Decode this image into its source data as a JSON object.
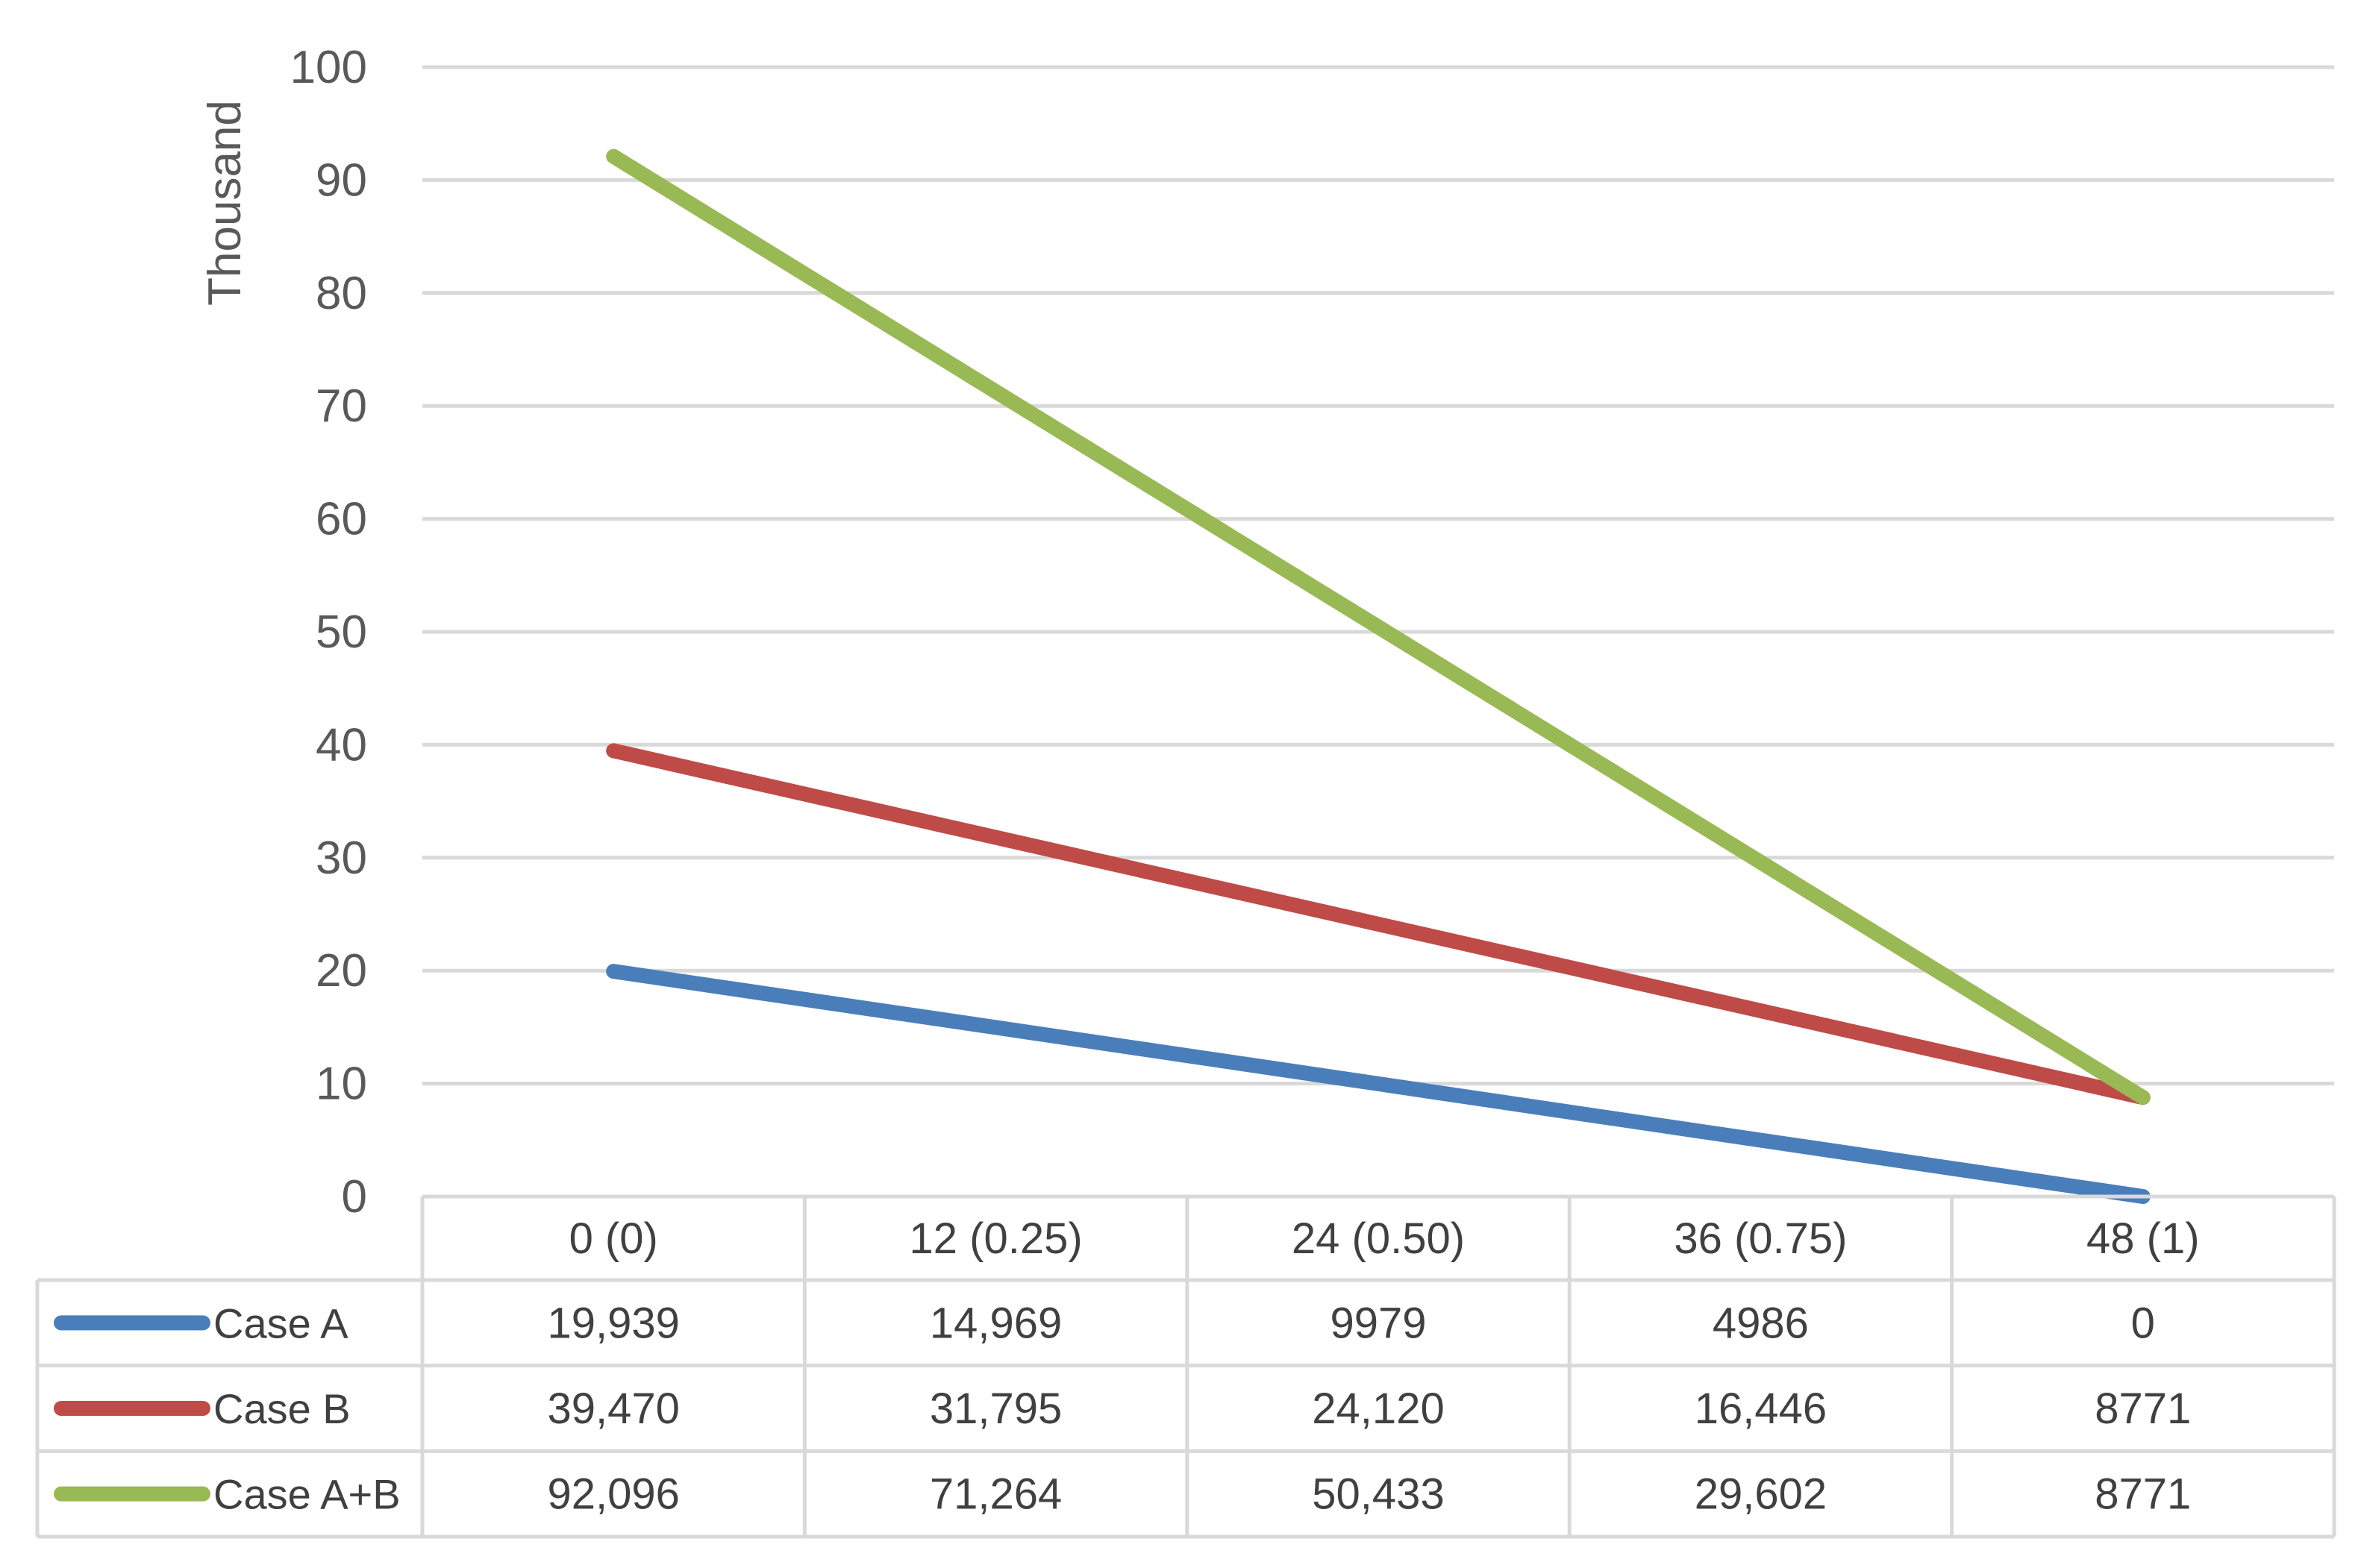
{
  "chart_data": {
    "type": "line",
    "ylabel": "Thousand",
    "ylim": [
      0,
      100
    ],
    "yticks": [
      0,
      10,
      20,
      30,
      40,
      50,
      60,
      70,
      80,
      90,
      100
    ],
    "y_tick_labels": [
      "0",
      "10",
      "20",
      "30",
      "40",
      "50",
      "60",
      "70",
      "80",
      "90",
      "100"
    ],
    "grid": true,
    "legend": "data-table",
    "categories": [
      "0 (0)",
      "12 (0.25)",
      "24 (0.50)",
      "36 (0.75)",
      "48 (1)"
    ],
    "series": [
      {
        "name": "Case A",
        "color": "#4a7ebb",
        "values": [
          19.939,
          14.969,
          9.979,
          4.986,
          0
        ],
        "labels": [
          "19,939",
          "14,969",
          "9979",
          "4986",
          "0"
        ]
      },
      {
        "name": "Case B",
        "color": "#be4b48",
        "values": [
          39.47,
          31.795,
          24.12,
          16.446,
          8.771
        ],
        "labels": [
          "39,470",
          "31,795",
          "24,120",
          "16,446",
          "8771"
        ]
      },
      {
        "name": "Case A+B",
        "color": "#98b954",
        "values": [
          92.096,
          71.264,
          50.433,
          29.602,
          8.771
        ],
        "labels": [
          "92,096",
          "71,264",
          "50,433",
          "29,602",
          "8771"
        ]
      }
    ]
  }
}
